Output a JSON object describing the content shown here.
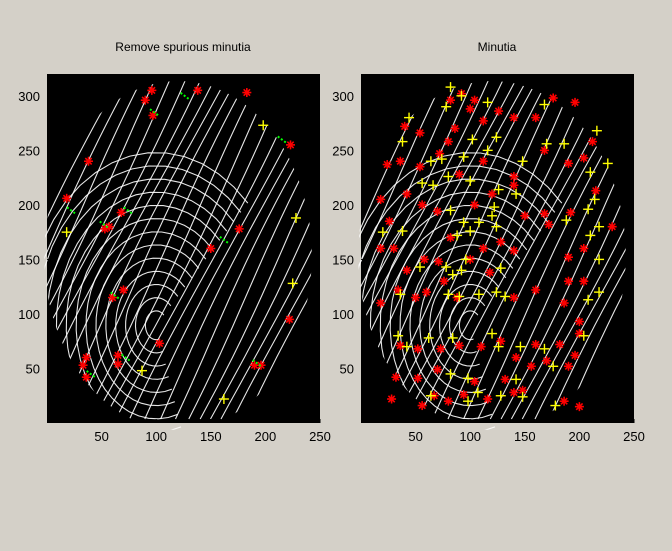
{
  "figure": {
    "background": "#d4d0c8"
  },
  "chart_data": [
    {
      "type": "scatter",
      "title": "Remove spurious minutia",
      "xlabel": "",
      "ylabel": "",
      "xlim": [
        0,
        250
      ],
      "ylim": [
        320,
        0
      ],
      "y_reversed": true,
      "xticks": [
        50,
        100,
        150,
        200,
        250
      ],
      "yticks": [
        50,
        100,
        150,
        200,
        250,
        300
      ],
      "background": "#000000",
      "grid": false,
      "legend": "none",
      "series": [
        {
          "marker": "star",
          "color": "#ff0000",
          "points": [
            [
              36,
              42
            ],
            [
              33,
              53
            ],
            [
              36,
              60
            ],
            [
              65,
              54
            ],
            [
              65,
              62
            ],
            [
              103,
              73
            ],
            [
              190,
              53
            ],
            [
              196,
              53
            ],
            [
              222,
              95
            ],
            [
              60,
              115
            ],
            [
              70,
              122
            ],
            [
              53,
              178
            ],
            [
              57,
              180
            ],
            [
              68,
              193
            ],
            [
              18,
              206
            ],
            [
              38,
              240
            ],
            [
              223,
              255
            ],
            [
              97,
              282
            ],
            [
              90,
              296
            ],
            [
              96,
              305
            ],
            [
              138,
              305
            ],
            [
              183,
              303
            ],
            [
              150,
              160
            ],
            [
              176,
              178
            ]
          ]
        },
        {
          "marker": "plus",
          "color": "#ffff00",
          "points": [
            [
              162,
              22
            ],
            [
              87,
              48
            ],
            [
              225,
              128
            ],
            [
              18,
              175
            ],
            [
              228,
              188
            ],
            [
              198,
              273
            ]
          ]
        },
        {
          "marker": "segment",
          "color": "#00ff00",
          "points": [
            [
              40,
              45
            ],
            [
              72,
              60
            ],
            [
              52,
              182
            ],
            [
              74,
              195
            ],
            [
              62,
              117
            ],
            [
              192,
              55
            ],
            [
              98,
              285
            ],
            [
              126,
              300
            ],
            [
              162,
              168
            ],
            [
              22,
              195
            ],
            [
              215,
              260
            ]
          ]
        }
      ]
    },
    {
      "type": "scatter",
      "title": "Minutia",
      "xlabel": "",
      "ylabel": "",
      "xlim": [
        0,
        250
      ],
      "ylim": [
        320,
        0
      ],
      "y_reversed": true,
      "xticks": [
        50,
        100,
        150,
        200,
        250
      ],
      "yticks": [
        50,
        100,
        150,
        200,
        250,
        300
      ],
      "background": "#000000",
      "grid": false,
      "legend": "none",
      "series": [
        {
          "marker": "star",
          "color": "#ff0000",
          "points": [
            [
              28,
              22
            ],
            [
              56,
              16
            ],
            [
              67,
              25
            ],
            [
              80,
              20
            ],
            [
              94,
              26
            ],
            [
              116,
              22
            ],
            [
              140,
              28
            ],
            [
              148,
              30
            ],
            [
              186,
              20
            ],
            [
              200,
              15
            ],
            [
              32,
              42
            ],
            [
              52,
              41
            ],
            [
              70,
              49
            ],
            [
              104,
              38
            ],
            [
              132,
              40
            ],
            [
              156,
              52
            ],
            [
              170,
              57
            ],
            [
              190,
              52
            ],
            [
              196,
              62
            ],
            [
              182,
              72
            ],
            [
              200,
              82
            ],
            [
              36,
              71
            ],
            [
              52,
              68
            ],
            [
              73,
              68
            ],
            [
              90,
              71
            ],
            [
              110,
              70
            ],
            [
              128,
              75
            ],
            [
              142,
              60
            ],
            [
              160,
              72
            ],
            [
              186,
              110
            ],
            [
              200,
              93
            ],
            [
              18,
              110
            ],
            [
              34,
              122
            ],
            [
              50,
              115
            ],
            [
              60,
              120
            ],
            [
              76,
              130
            ],
            [
              88,
              115
            ],
            [
              118,
              138
            ],
            [
              140,
              115
            ],
            [
              160,
              122
            ],
            [
              190,
              130
            ],
            [
              204,
              130
            ],
            [
              18,
              160
            ],
            [
              30,
              160
            ],
            [
              42,
              140
            ],
            [
              58,
              150
            ],
            [
              71,
              148
            ],
            [
              82,
              170
            ],
            [
              100,
              150
            ],
            [
              112,
              160
            ],
            [
              128,
              166
            ],
            [
              140,
              158
            ],
            [
              150,
              190
            ],
            [
              172,
              182
            ],
            [
              190,
              152
            ],
            [
              204,
              160
            ],
            [
              230,
              180
            ],
            [
              18,
              205
            ],
            [
              26,
              185
            ],
            [
              42,
              210
            ],
            [
              56,
              200
            ],
            [
              70,
              194
            ],
            [
              104,
              200
            ],
            [
              120,
              210
            ],
            [
              140,
              218
            ],
            [
              168,
              192
            ],
            [
              192,
              193
            ],
            [
              215,
              213
            ],
            [
              24,
              237
            ],
            [
              36,
              240
            ],
            [
              54,
              235
            ],
            [
              72,
              247
            ],
            [
              90,
              228
            ],
            [
              112,
              240
            ],
            [
              140,
              226
            ],
            [
              168,
              250
            ],
            [
              190,
              238
            ],
            [
              204,
              243
            ],
            [
              212,
              258
            ],
            [
              40,
              272
            ],
            [
              54,
              266
            ],
            [
              80,
              258
            ],
            [
              86,
              270
            ],
            [
              100,
              288
            ],
            [
              112,
              277
            ],
            [
              126,
              286
            ],
            [
              140,
              280
            ],
            [
              160,
              280
            ],
            [
              176,
              298
            ],
            [
              196,
              294
            ],
            [
              82,
              296
            ],
            [
              92,
              302
            ],
            [
              104,
              296
            ]
          ]
        },
        {
          "marker": "plus",
          "color": "#ffff00",
          "points": [
            [
              64,
              25
            ],
            [
              98,
              20
            ],
            [
              107,
              28
            ],
            [
              128,
              25
            ],
            [
              148,
              24
            ],
            [
              178,
              16
            ],
            [
              82,
              45
            ],
            [
              98,
              41
            ],
            [
              142,
              40
            ],
            [
              176,
              52
            ],
            [
              34,
              80
            ],
            [
              42,
              70
            ],
            [
              62,
              78
            ],
            [
              84,
              78
            ],
            [
              120,
              82
            ],
            [
              126,
              70
            ],
            [
              146,
              70
            ],
            [
              168,
              68
            ],
            [
              204,
              80
            ],
            [
              36,
              118
            ],
            [
              80,
              118
            ],
            [
              90,
              116
            ],
            [
              108,
              118
            ],
            [
              124,
              120
            ],
            [
              132,
              116
            ],
            [
              208,
              113
            ],
            [
              218,
              120
            ],
            [
              54,
              143
            ],
            [
              78,
              143
            ],
            [
              84,
              136
            ],
            [
              92,
              140
            ],
            [
              96,
              150
            ],
            [
              128,
              142
            ],
            [
              218,
              150
            ],
            [
              20,
              175
            ],
            [
              38,
              176
            ],
            [
              88,
              172
            ],
            [
              100,
              176
            ],
            [
              124,
              180
            ],
            [
              188,
              186
            ],
            [
              210,
              172
            ],
            [
              218,
              180
            ],
            [
              82,
              195
            ],
            [
              94,
              184
            ],
            [
              108,
              184
            ],
            [
              120,
              190
            ],
            [
              122,
              198
            ],
            [
              208,
              196
            ],
            [
              214,
              205
            ],
            [
              56,
              220
            ],
            [
              66,
              218
            ],
            [
              80,
              226
            ],
            [
              100,
              222
            ],
            [
              126,
              214
            ],
            [
              142,
              210
            ],
            [
              210,
              230
            ],
            [
              226,
              238
            ],
            [
              64,
              240
            ],
            [
              74,
              242
            ],
            [
              94,
              244
            ],
            [
              116,
              250
            ],
            [
              148,
              240
            ],
            [
              170,
              256
            ],
            [
              38,
              258
            ],
            [
              102,
              260
            ],
            [
              124,
              262
            ],
            [
              186,
              256
            ],
            [
              216,
              268
            ],
            [
              44,
              280
            ],
            [
              78,
              290
            ],
            [
              116,
              294
            ],
            [
              168,
              292
            ],
            [
              92,
              300
            ],
            [
              82,
              308
            ]
          ]
        }
      ]
    }
  ]
}
